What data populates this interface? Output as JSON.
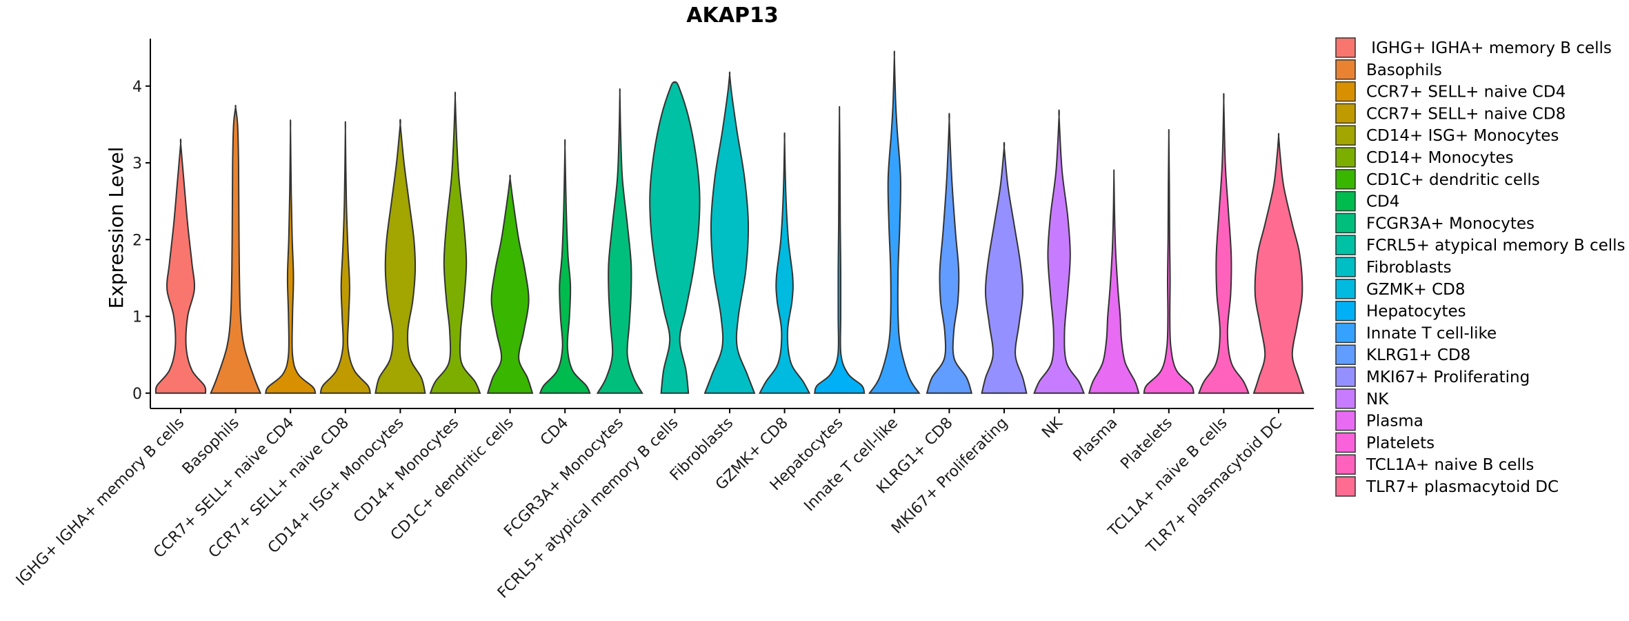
{
  "chart_data": {
    "type": "violin",
    "title": "AKAP13",
    "xlabel": "",
    "ylabel": "Expression Level",
    "ylim": [
      -0.2,
      4.6
    ],
    "yticks": [
      0,
      1,
      2,
      3,
      4
    ],
    "legend_position": "right",
    "categories": [
      " IGHG+ IGHA+ memory B cells",
      "Basophils",
      "CCR7+ SELL+ naive CD4",
      "CCR7+ SELL+ naive CD8",
      "CD14+ ISG+ Monocytes",
      "CD14+ Monocytes",
      "CD1C+ dendritic cells",
      "CD4",
      "FCGR3A+ Monocytes",
      "FCRL5+ atypical memory B cells",
      "Fibroblasts",
      "GZMK+ CD8",
      "Hepatocytes",
      "Innate T cell-like",
      "KLRG1+ CD8",
      "MKI67+ Proliferating",
      "NK",
      "Plasma",
      "Platelets",
      "TCL1A+ naive B cells",
      "TLR7+ plasmacytoid DC"
    ],
    "colors": [
      "#F8766D",
      "#EA8331",
      "#D89000",
      "#C09B00",
      "#A3A500",
      "#7CAE00",
      "#39B600",
      "#00BB4E",
      "#00BF7D",
      "#00C1A3",
      "#00BFC4",
      "#00BAE0",
      "#00B0F6",
      "#35A2FF",
      "#619CFF",
      "#9590FF",
      "#C77CFF",
      "#E76BF3",
      "#FA62DB",
      "#FF62BC",
      "#FF6C91"
    ],
    "series": [
      {
        "name": " IGHG+ IGHA+ memory B cells",
        "max": 3.25,
        "profile": [
          [
            0,
            1.0
          ],
          [
            0.1,
            0.95
          ],
          [
            0.3,
            0.45
          ],
          [
            0.6,
            0.22
          ],
          [
            1.0,
            0.28
          ],
          [
            1.35,
            0.55
          ],
          [
            1.7,
            0.45
          ],
          [
            2.2,
            0.28
          ],
          [
            2.8,
            0.12
          ],
          [
            3.25,
            0.0
          ]
        ]
      },
      {
        "name": "Basophils",
        "max": 3.72,
        "profile": [
          [
            0,
            1.0
          ],
          [
            0.2,
            0.75
          ],
          [
            0.6,
            0.35
          ],
          [
            1.0,
            0.2
          ],
          [
            1.6,
            0.15
          ],
          [
            2.4,
            0.13
          ],
          [
            3.0,
            0.12
          ],
          [
            3.5,
            0.08
          ],
          [
            3.72,
            0.0
          ]
        ]
      },
      {
        "name": "CCR7+ SELL+ naive CD4",
        "max": 3.45,
        "profile": [
          [
            0,
            1.0
          ],
          [
            0.08,
            0.9
          ],
          [
            0.25,
            0.3
          ],
          [
            0.5,
            0.08
          ],
          [
            1.0,
            0.08
          ],
          [
            1.5,
            0.12
          ],
          [
            2.0,
            0.07
          ],
          [
            2.6,
            0.03
          ],
          [
            3.45,
            0.0
          ]
        ]
      },
      {
        "name": "CCR7+ SELL+ naive CD8",
        "max": 3.42,
        "profile": [
          [
            0,
            1.0
          ],
          [
            0.1,
            0.9
          ],
          [
            0.3,
            0.35
          ],
          [
            0.6,
            0.1
          ],
          [
            1.0,
            0.13
          ],
          [
            1.4,
            0.17
          ],
          [
            1.9,
            0.1
          ],
          [
            2.5,
            0.04
          ],
          [
            3.42,
            0.0
          ]
        ]
      },
      {
        "name": "CD14+ ISG+ Monocytes",
        "max": 3.5,
        "profile": [
          [
            0,
            1.0
          ],
          [
            0.2,
            0.85
          ],
          [
            0.45,
            0.4
          ],
          [
            0.8,
            0.3
          ],
          [
            1.2,
            0.5
          ],
          [
            1.6,
            0.6
          ],
          [
            2.0,
            0.55
          ],
          [
            2.5,
            0.35
          ],
          [
            3.0,
            0.15
          ],
          [
            3.5,
            0.0
          ]
        ]
      },
      {
        "name": "CD14+ Monocytes",
        "max": 3.85,
        "profile": [
          [
            0,
            1.0
          ],
          [
            0.15,
            0.8
          ],
          [
            0.4,
            0.25
          ],
          [
            0.8,
            0.22
          ],
          [
            1.2,
            0.35
          ],
          [
            1.7,
            0.45
          ],
          [
            2.2,
            0.35
          ],
          [
            2.8,
            0.15
          ],
          [
            3.3,
            0.06
          ],
          [
            3.85,
            0.0
          ]
        ]
      },
      {
        "name": "CD1C+ dendritic cells",
        "max": 2.8,
        "profile": [
          [
            0,
            0.9
          ],
          [
            0.2,
            0.7
          ],
          [
            0.45,
            0.35
          ],
          [
            0.8,
            0.55
          ],
          [
            1.2,
            0.75
          ],
          [
            1.6,
            0.6
          ],
          [
            2.0,
            0.35
          ],
          [
            2.5,
            0.12
          ],
          [
            2.8,
            0.0
          ]
        ]
      },
      {
        "name": "CD4",
        "max": 3.2,
        "profile": [
          [
            0,
            1.0
          ],
          [
            0.1,
            0.85
          ],
          [
            0.3,
            0.3
          ],
          [
            0.6,
            0.1
          ],
          [
            1.0,
            0.18
          ],
          [
            1.4,
            0.22
          ],
          [
            1.8,
            0.12
          ],
          [
            2.4,
            0.05
          ],
          [
            3.2,
            0.0
          ]
        ]
      },
      {
        "name": "FCGR3A+ Monocytes",
        "max": 3.9,
        "profile": [
          [
            0,
            0.9
          ],
          [
            0.2,
            0.55
          ],
          [
            0.5,
            0.3
          ],
          [
            0.9,
            0.38
          ],
          [
            1.3,
            0.45
          ],
          [
            1.7,
            0.45
          ],
          [
            2.2,
            0.3
          ],
          [
            2.8,
            0.1
          ],
          [
            3.4,
            0.03
          ],
          [
            3.9,
            0.0
          ]
        ]
      },
      {
        "name": "FCRL5+ atypical memory B cells",
        "max": 4.05,
        "profile": [
          [
            0,
            0.55
          ],
          [
            0.3,
            0.45
          ],
          [
            0.7,
            0.2
          ],
          [
            1.1,
            0.45
          ],
          [
            1.6,
            0.75
          ],
          [
            2.1,
            0.95
          ],
          [
            2.6,
            1.0
          ],
          [
            3.1,
            0.85
          ],
          [
            3.6,
            0.55
          ],
          [
            4.0,
            0.15
          ],
          [
            4.05,
            0.0
          ]
        ]
      },
      {
        "name": "Fibroblasts",
        "max": 4.15,
        "profile": [
          [
            0,
            1.0
          ],
          [
            0.25,
            0.7
          ],
          [
            0.6,
            0.3
          ],
          [
            1.0,
            0.35
          ],
          [
            1.6,
            0.65
          ],
          [
            2.2,
            0.75
          ],
          [
            2.8,
            0.6
          ],
          [
            3.4,
            0.3
          ],
          [
            3.9,
            0.08
          ],
          [
            4.15,
            0.0
          ]
        ]
      },
      {
        "name": "GZMK+ CD8",
        "max": 3.3,
        "profile": [
          [
            0,
            1.0
          ],
          [
            0.15,
            0.75
          ],
          [
            0.4,
            0.25
          ],
          [
            0.8,
            0.12
          ],
          [
            1.2,
            0.3
          ],
          [
            1.5,
            0.33
          ],
          [
            2.0,
            0.15
          ],
          [
            2.6,
            0.05
          ],
          [
            3.3,
            0.0
          ]
        ]
      },
      {
        "name": "Hepatocytes",
        "max": 3.65,
        "profile": [
          [
            0,
            1.0
          ],
          [
            0.1,
            0.9
          ],
          [
            0.25,
            0.35
          ],
          [
            0.5,
            0.06
          ],
          [
            1.0,
            0.05
          ],
          [
            1.6,
            0.05
          ],
          [
            2.2,
            0.03
          ],
          [
            3.0,
            0.02
          ],
          [
            3.65,
            0.0
          ]
        ]
      },
      {
        "name": "Innate T cell-like",
        "max": 4.38,
        "profile": [
          [
            0,
            1.0
          ],
          [
            0.2,
            0.6
          ],
          [
            0.6,
            0.25
          ],
          [
            1.0,
            0.15
          ],
          [
            1.6,
            0.15
          ],
          [
            2.2,
            0.22
          ],
          [
            2.8,
            0.25
          ],
          [
            3.4,
            0.12
          ],
          [
            3.8,
            0.05
          ],
          [
            4.38,
            0.0
          ]
        ]
      },
      {
        "name": "KLRG1+ CD8",
        "max": 3.55,
        "profile": [
          [
            0,
            0.9
          ],
          [
            0.2,
            0.7
          ],
          [
            0.45,
            0.2
          ],
          [
            0.8,
            0.18
          ],
          [
            1.2,
            0.35
          ],
          [
            1.6,
            0.38
          ],
          [
            2.1,
            0.25
          ],
          [
            2.8,
            0.1
          ],
          [
            3.55,
            0.0
          ]
        ]
      },
      {
        "name": "MKI67+ Proliferating",
        "max": 3.2,
        "profile": [
          [
            0,
            0.9
          ],
          [
            0.2,
            0.75
          ],
          [
            0.5,
            0.45
          ],
          [
            0.9,
            0.6
          ],
          [
            1.3,
            0.75
          ],
          [
            1.7,
            0.65
          ],
          [
            2.2,
            0.4
          ],
          [
            2.7,
            0.15
          ],
          [
            3.2,
            0.0
          ]
        ]
      },
      {
        "name": "NK",
        "max": 3.6,
        "profile": [
          [
            0,
            1.0
          ],
          [
            0.15,
            0.8
          ],
          [
            0.4,
            0.3
          ],
          [
            0.8,
            0.22
          ],
          [
            1.3,
            0.35
          ],
          [
            1.8,
            0.45
          ],
          [
            2.3,
            0.35
          ],
          [
            2.9,
            0.12
          ],
          [
            3.6,
            0.0
          ]
        ]
      },
      {
        "name": "Plasma",
        "max": 2.85,
        "profile": [
          [
            0,
            1.0
          ],
          [
            0.15,
            0.85
          ],
          [
            0.4,
            0.45
          ],
          [
            0.7,
            0.3
          ],
          [
            1.0,
            0.25
          ],
          [
            1.4,
            0.15
          ],
          [
            1.9,
            0.06
          ],
          [
            2.4,
            0.02
          ],
          [
            2.85,
            0.0
          ]
        ]
      },
      {
        "name": "Platelets",
        "max": 3.35,
        "profile": [
          [
            0,
            1.0
          ],
          [
            0.1,
            0.9
          ],
          [
            0.3,
            0.3
          ],
          [
            0.6,
            0.08
          ],
          [
            1.0,
            0.04
          ],
          [
            1.5,
            0.05
          ],
          [
            2.0,
            0.03
          ],
          [
            2.7,
            0.02
          ],
          [
            3.35,
            0.0
          ]
        ]
      },
      {
        "name": "TCL1A+ naive B cells",
        "max": 3.8,
        "profile": [
          [
            0,
            1.0
          ],
          [
            0.15,
            0.8
          ],
          [
            0.4,
            0.3
          ],
          [
            0.8,
            0.15
          ],
          [
            1.3,
            0.28
          ],
          [
            1.8,
            0.3
          ],
          [
            2.4,
            0.18
          ],
          [
            3.0,
            0.06
          ],
          [
            3.8,
            0.0
          ]
        ]
      },
      {
        "name": "TLR7+ plasmacytoid DC",
        "max": 3.35,
        "profile": [
          [
            0,
            1.0
          ],
          [
            0.2,
            0.8
          ],
          [
            0.5,
            0.55
          ],
          [
            0.9,
            0.75
          ],
          [
            1.3,
            0.95
          ],
          [
            1.8,
            0.85
          ],
          [
            2.2,
            0.55
          ],
          [
            2.7,
            0.2
          ],
          [
            3.1,
            0.06
          ],
          [
            3.35,
            0.0
          ]
        ]
      }
    ]
  }
}
